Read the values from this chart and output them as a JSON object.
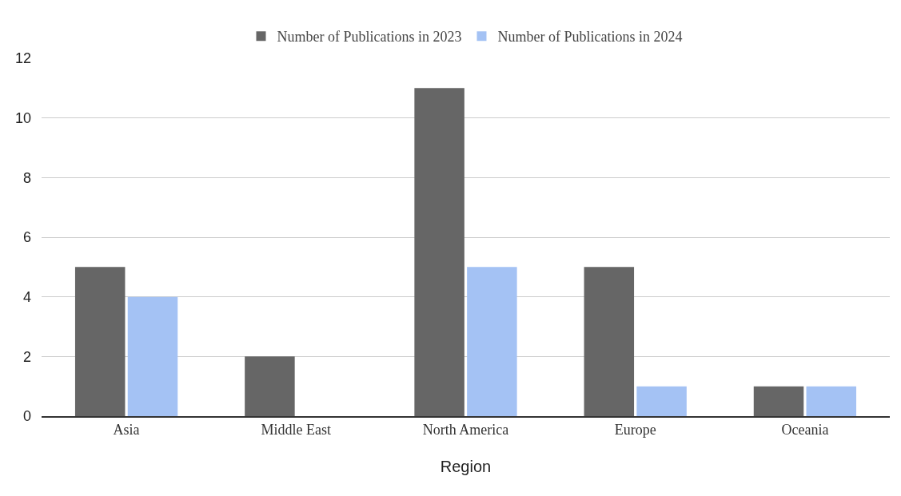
{
  "chart_data": {
    "type": "bar",
    "xlabel": "Region",
    "categories": [
      "Asia",
      "Middle East",
      "North America",
      "Europe",
      "Oceania"
    ],
    "series": [
      {
        "name": "Number of Publications in 2023",
        "color": "#666666",
        "values": [
          5,
          2,
          11,
          5,
          1
        ]
      },
      {
        "name": "Number of Publications in 2024",
        "color": "#a4c2f4",
        "values": [
          4,
          0,
          5,
          1,
          1
        ]
      }
    ],
    "ylim": [
      0,
      12
    ],
    "yticks": [
      0,
      2,
      4,
      6,
      8,
      10,
      12
    ],
    "grid": "y",
    "legend": "top"
  }
}
